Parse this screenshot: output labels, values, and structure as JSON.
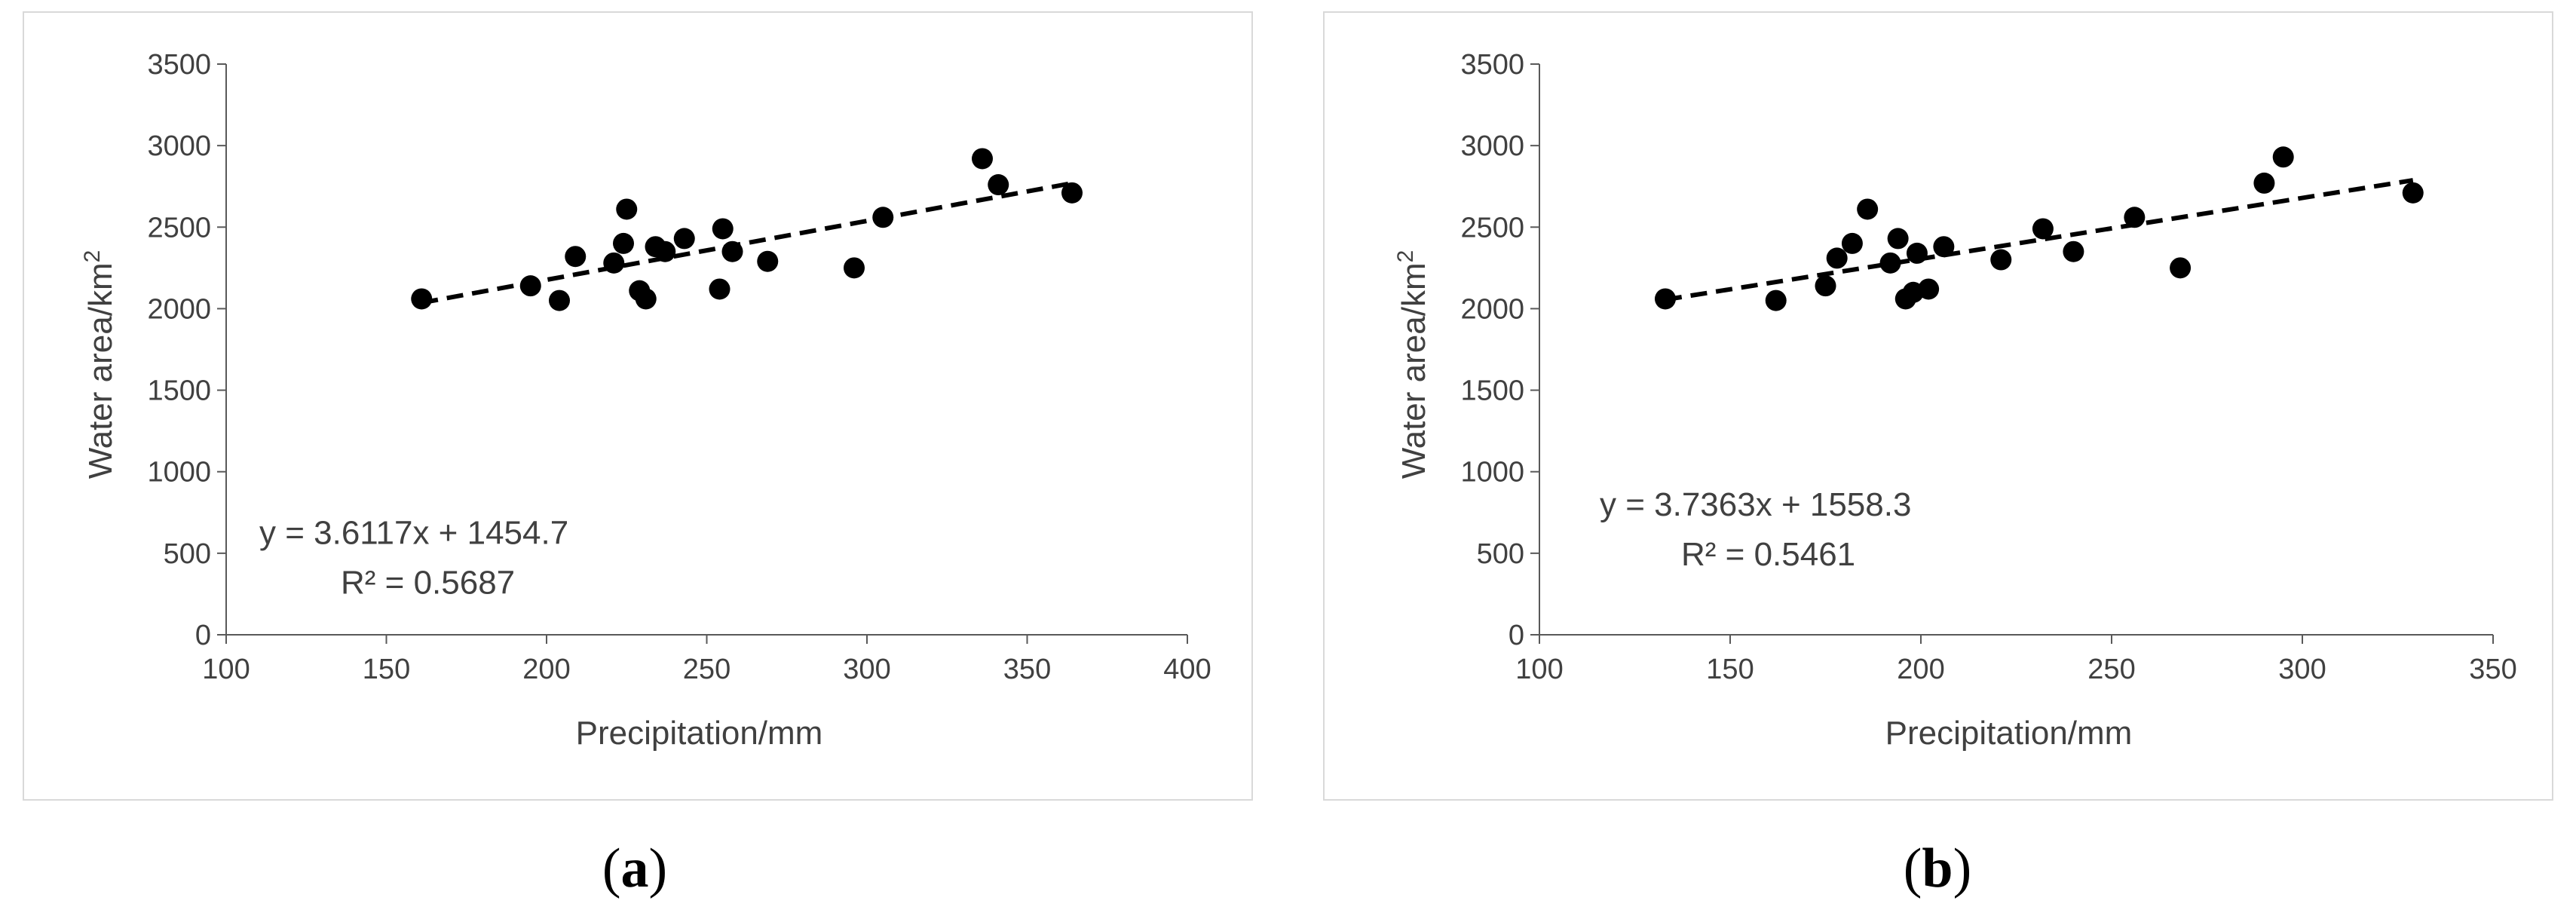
{
  "captions": [
    {
      "open": "(",
      "label": "a",
      "close": ")"
    },
    {
      "open": "(",
      "label": "b",
      "close": ")"
    }
  ],
  "chart_data": [
    {
      "type": "scatter",
      "xlabel": "Precipitation/mm",
      "ylabel_main": "Water area/km",
      "ylabel_sup": "2",
      "xlim": [
        100,
        400
      ],
      "ylim": [
        0,
        3500
      ],
      "x_ticks": [
        "100",
        "150",
        "200",
        "250",
        "300",
        "350",
        "400"
      ],
      "y_ticks": [
        "0",
        "500",
        "1000",
        "1500",
        "2000",
        "2500",
        "3000",
        "3500"
      ],
      "grid": false,
      "marker_color": "#000000",
      "points": [
        {
          "x": 161,
          "y": 2060
        },
        {
          "x": 195,
          "y": 2140
        },
        {
          "x": 204,
          "y": 2050
        },
        {
          "x": 209,
          "y": 2320
        },
        {
          "x": 221,
          "y": 2280
        },
        {
          "x": 224,
          "y": 2400
        },
        {
          "x": 225,
          "y": 2610
        },
        {
          "x": 229,
          "y": 2110
        },
        {
          "x": 231,
          "y": 2060
        },
        {
          "x": 234,
          "y": 2380
        },
        {
          "x": 237,
          "y": 2350
        },
        {
          "x": 243,
          "y": 2430
        },
        {
          "x": 254,
          "y": 2120
        },
        {
          "x": 255,
          "y": 2490
        },
        {
          "x": 258,
          "y": 2350
        },
        {
          "x": 269,
          "y": 2290
        },
        {
          "x": 296,
          "y": 2250
        },
        {
          "x": 305,
          "y": 2560
        },
        {
          "x": 336,
          "y": 2920
        },
        {
          "x": 341,
          "y": 2760
        },
        {
          "x": 364,
          "y": 2710
        }
      ],
      "trendline": {
        "slope": 3.6117,
        "intercept": 1454.7,
        "x_start": 161,
        "x_end": 364,
        "style": "dashed"
      },
      "equation": "y = 3.6117x + 1454.7",
      "r_squared": "R² = 0.5687"
    },
    {
      "type": "scatter",
      "xlabel": "Precipitation/mm",
      "ylabel_main": "Water area/km",
      "ylabel_sup": "2",
      "xlim": [
        100,
        350
      ],
      "ylim": [
        0,
        3500
      ],
      "x_ticks": [
        "100",
        "150",
        "200",
        "250",
        "300",
        "350"
      ],
      "y_ticks": [
        "0",
        "500",
        "1000",
        "1500",
        "2000",
        "2500",
        "3000",
        "3500"
      ],
      "grid": false,
      "marker_color": "#000000",
      "points": [
        {
          "x": 133,
          "y": 2060
        },
        {
          "x": 162,
          "y": 2050
        },
        {
          "x": 175,
          "y": 2140
        },
        {
          "x": 178,
          "y": 2310
        },
        {
          "x": 182,
          "y": 2400
        },
        {
          "x": 186,
          "y": 2610
        },
        {
          "x": 192,
          "y": 2280
        },
        {
          "x": 194,
          "y": 2430
        },
        {
          "x": 196,
          "y": 2060
        },
        {
          "x": 198,
          "y": 2100
        },
        {
          "x": 199,
          "y": 2340
        },
        {
          "x": 202,
          "y": 2120
        },
        {
          "x": 206,
          "y": 2380
        },
        {
          "x": 221,
          "y": 2300
        },
        {
          "x": 232,
          "y": 2490
        },
        {
          "x": 240,
          "y": 2350
        },
        {
          "x": 256,
          "y": 2560
        },
        {
          "x": 268,
          "y": 2250
        },
        {
          "x": 290,
          "y": 2770
        },
        {
          "x": 295,
          "y": 2930
        },
        {
          "x": 329,
          "y": 2710
        }
      ],
      "trendline": {
        "slope": 3.7363,
        "intercept": 1558.3,
        "x_start": 133,
        "x_end": 329,
        "style": "dashed"
      },
      "equation": "y = 3.7363x + 1558.3",
      "r_squared": "R² = 0.5461"
    }
  ]
}
